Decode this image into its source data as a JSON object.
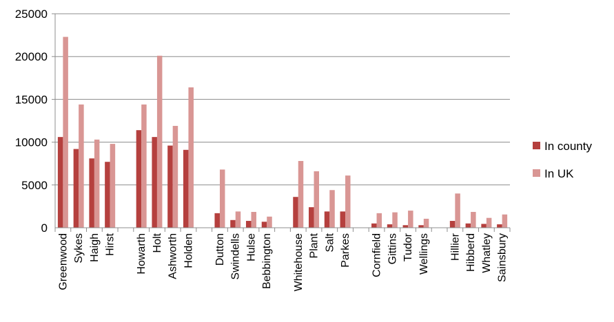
{
  "chart_data": {
    "type": "bar",
    "title": "",
    "xlabel": "",
    "ylabel": "",
    "ylim": [
      0,
      25000
    ],
    "yticks": [
      0,
      5000,
      10000,
      15000,
      20000,
      25000
    ],
    "grid": true,
    "legend_position": "right",
    "categories": [
      "Greenwood",
      "Sykes",
      "Haigh",
      "Hirst",
      "",
      "Howarth",
      "Holt",
      "Ashworth",
      "Holden",
      "",
      "Dutton",
      "Swindells",
      "Hulse",
      "Bebbington",
      "",
      "Whitehouse",
      "Plant",
      "Salt",
      "Parkes",
      "",
      "Cornfield",
      "Gittins",
      "Tudor",
      "Wellings",
      "",
      "Hillier",
      "Hibberd",
      "Whatley",
      "Sainsbury"
    ],
    "series": [
      {
        "name": "In county",
        "color": "#b5403e",
        "values": [
          10600,
          9200,
          8100,
          7700,
          null,
          11400,
          10600,
          9600,
          9100,
          null,
          1700,
          900,
          800,
          700,
          null,
          3600,
          2400,
          1900,
          1900,
          null,
          500,
          400,
          300,
          300,
          null,
          800,
          500,
          450,
          400
        ]
      },
      {
        "name": "In UK",
        "color": "#d99694",
        "values": [
          22300,
          14400,
          10300,
          9800,
          null,
          14400,
          20100,
          11900,
          16400,
          null,
          6800,
          1900,
          1850,
          1300,
          null,
          7800,
          6600,
          4400,
          6100,
          null,
          1700,
          1800,
          2000,
          1050,
          null,
          4000,
          1850,
          1150,
          1550
        ]
      }
    ]
  }
}
